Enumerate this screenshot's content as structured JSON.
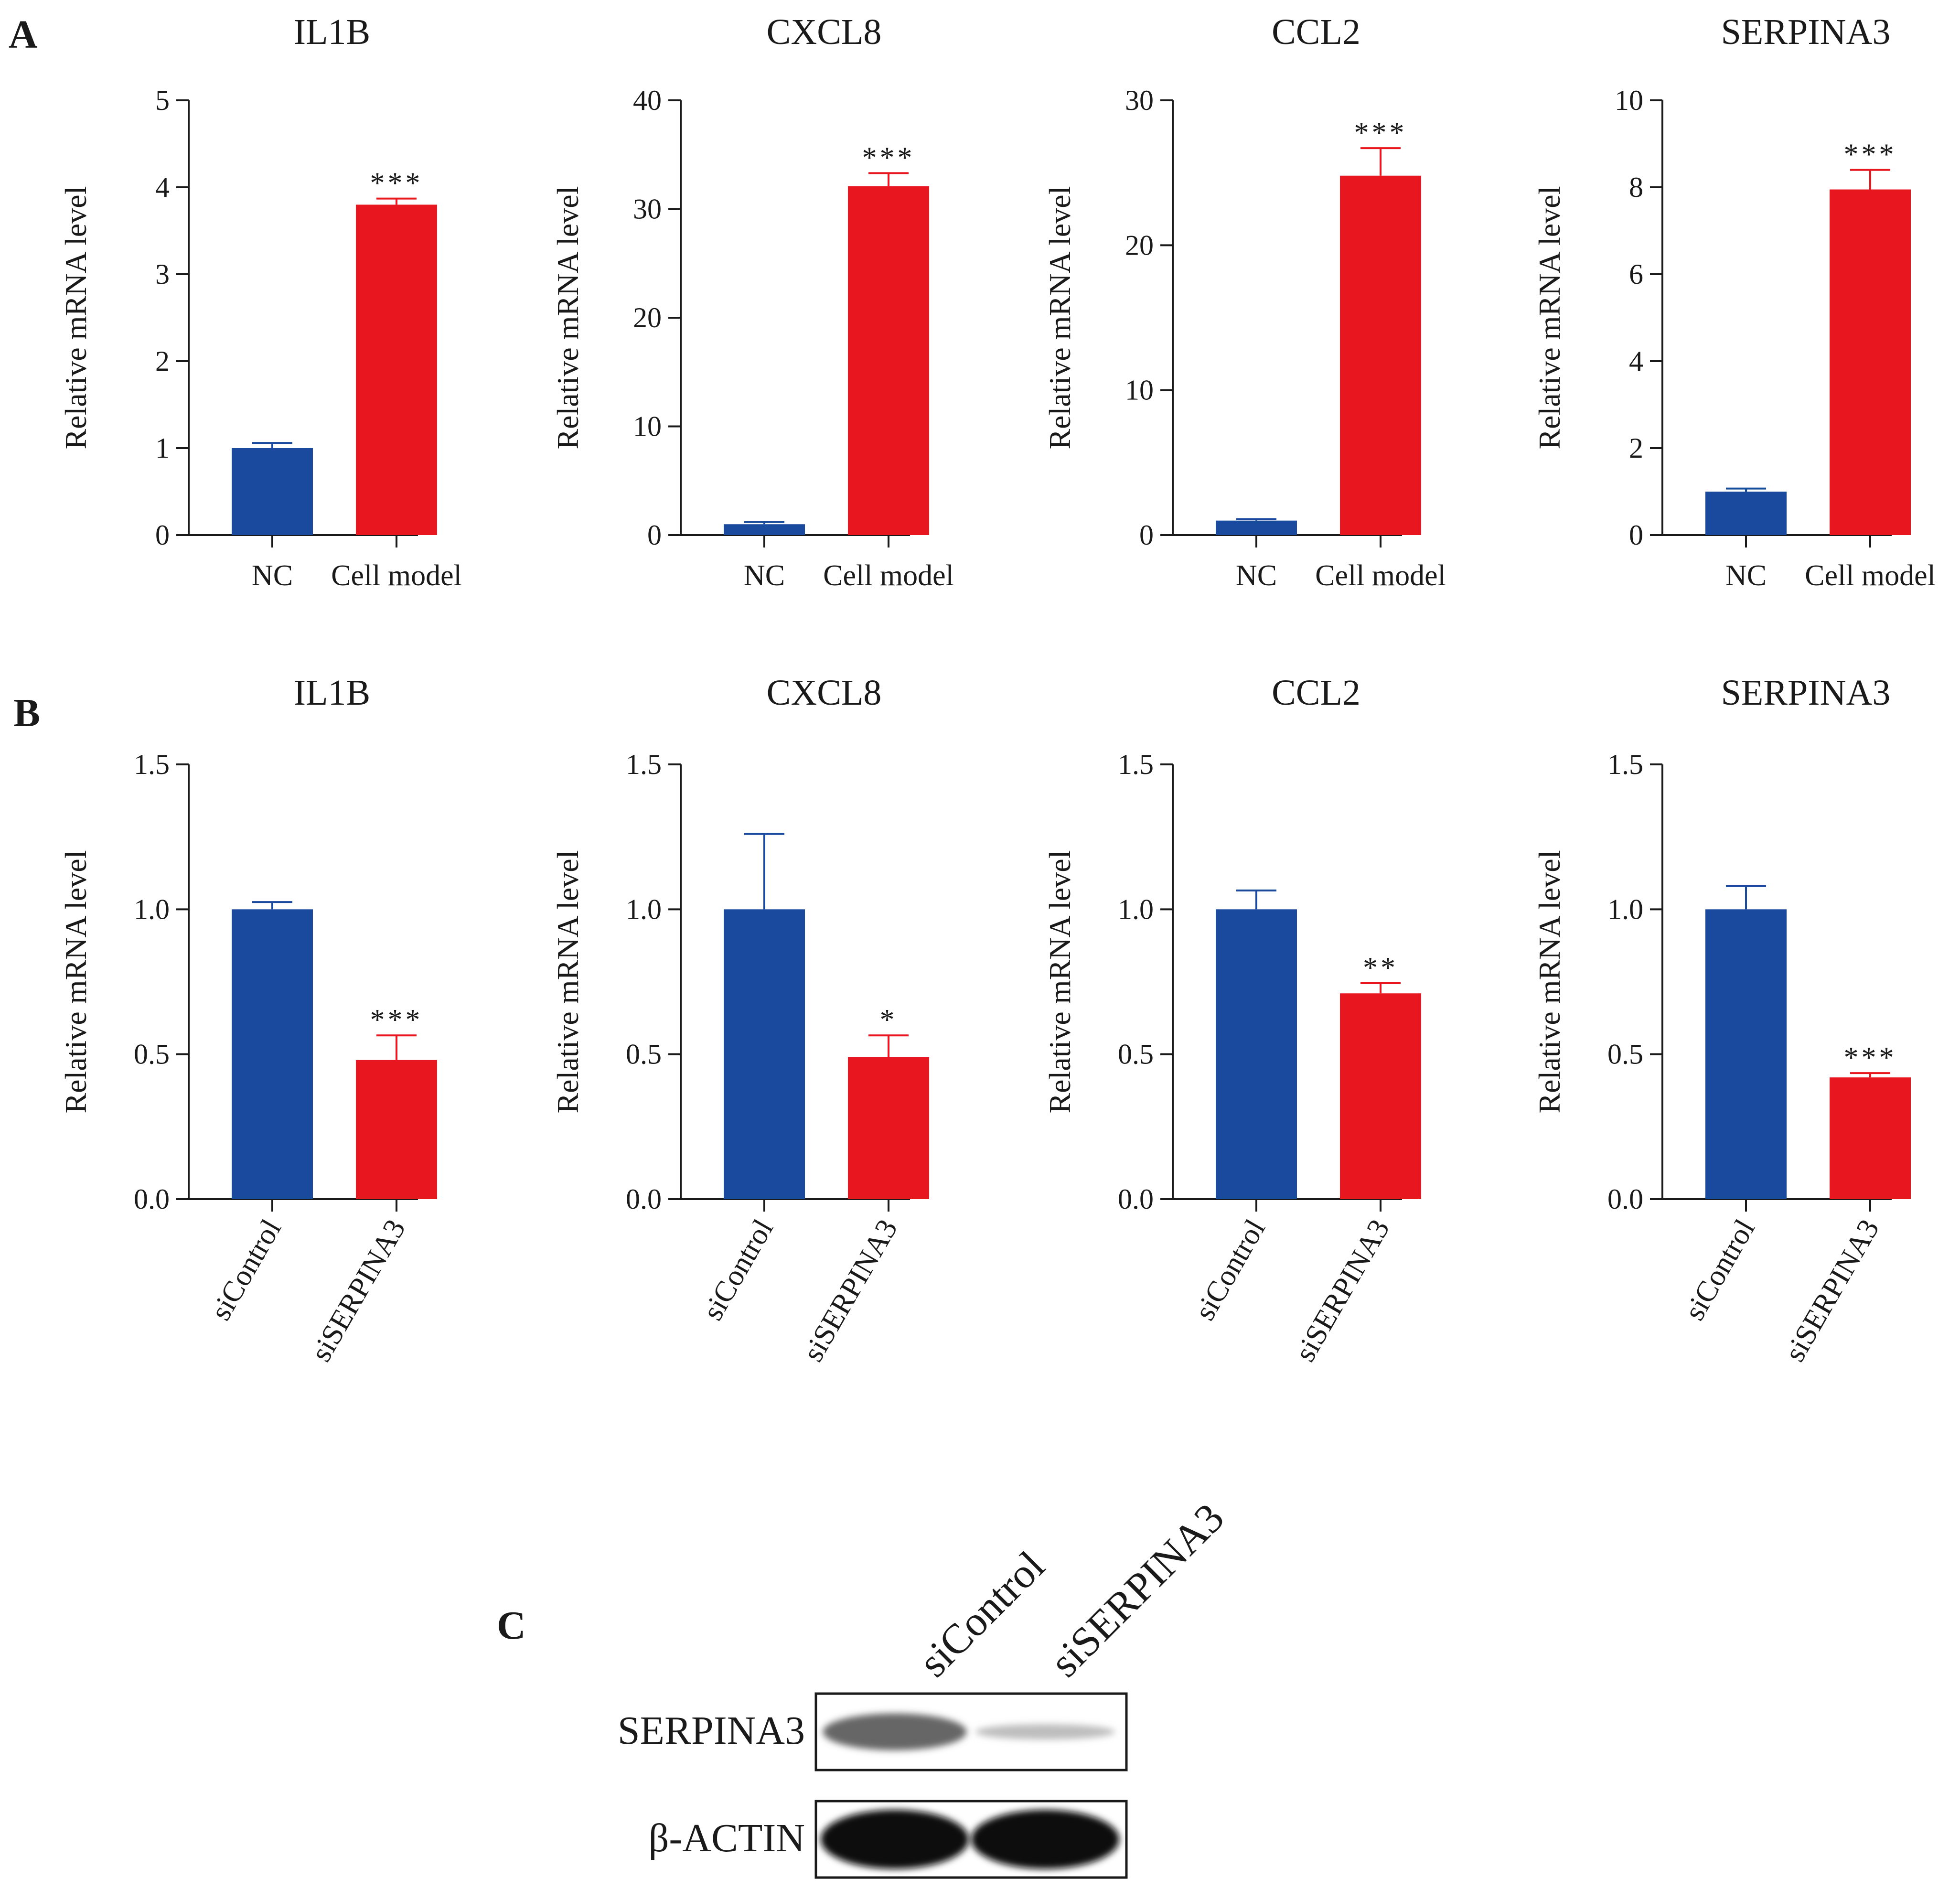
{
  "panels": {
    "a": "A",
    "b": "B",
    "c": "C"
  },
  "colors": {
    "control": "#1a4a9e",
    "treatment": "#e8171f",
    "axis": "#1a1a1a"
  },
  "chart_data": [
    {
      "panel": "A",
      "type": "bar",
      "title": "IL1B",
      "ylabel": "Relative mRNA level",
      "ylim": [
        0,
        5
      ],
      "yticks": [
        "0",
        "1",
        "2",
        "3",
        "4",
        "5"
      ],
      "categories": [
        "NC",
        "Cell model"
      ],
      "values": [
        1.0,
        3.8
      ],
      "errors": [
        0.06,
        0.07
      ],
      "significance": [
        "",
        "***"
      ]
    },
    {
      "panel": "A",
      "type": "bar",
      "title": "CXCL8",
      "ylabel": "Relative mRNA level",
      "ylim": [
        0,
        40
      ],
      "yticks": [
        "0",
        "10",
        "20",
        "30",
        "40"
      ],
      "categories": [
        "NC",
        "Cell model"
      ],
      "values": [
        1.0,
        32.1
      ],
      "errors": [
        0.2,
        1.2
      ],
      "significance": [
        "",
        "***"
      ]
    },
    {
      "panel": "A",
      "type": "bar",
      "title": "CCL2",
      "ylabel": "Relative mRNA level",
      "ylim": [
        0,
        30
      ],
      "yticks": [
        "0",
        "10",
        "20",
        "30"
      ],
      "categories": [
        "NC",
        "Cell model"
      ],
      "values": [
        1.0,
        24.8
      ],
      "errors": [
        0.1,
        1.9
      ],
      "significance": [
        "",
        "***"
      ]
    },
    {
      "panel": "A",
      "type": "bar",
      "title": "SERPINA3",
      "ylabel": "Relative mRNA level",
      "ylim": [
        0,
        10
      ],
      "yticks": [
        "0",
        "2",
        "4",
        "6",
        "8",
        "10"
      ],
      "categories": [
        "NC",
        "Cell model"
      ],
      "values": [
        1.0,
        7.95
      ],
      "errors": [
        0.07,
        0.45
      ],
      "significance": [
        "",
        "***"
      ]
    },
    {
      "panel": "B",
      "type": "bar",
      "title": "IL1B",
      "ylabel": "Relative mRNA level",
      "ylim": [
        0,
        1.5
      ],
      "yticks": [
        "0.0",
        "0.5",
        "1.0",
        "1.5"
      ],
      "categories": [
        "siControl",
        "siSERPINA3"
      ],
      "values": [
        1.0,
        0.48
      ],
      "errors": [
        0.025,
        0.085
      ],
      "significance": [
        "",
        "***"
      ]
    },
    {
      "panel": "B",
      "type": "bar",
      "title": "CXCL8",
      "ylabel": "Relative mRNA level",
      "ylim": [
        0,
        1.5
      ],
      "yticks": [
        "0.0",
        "0.5",
        "1.0",
        "1.5"
      ],
      "categories": [
        "siControl",
        "siSERPINA3"
      ],
      "values": [
        1.0,
        0.49
      ],
      "errors": [
        0.26,
        0.075
      ],
      "significance": [
        "",
        "*"
      ]
    },
    {
      "panel": "B",
      "type": "bar",
      "title": "CCL2",
      "ylabel": "Relative mRNA level",
      "ylim": [
        0,
        1.5
      ],
      "yticks": [
        "0.0",
        "0.5",
        "1.0",
        "1.5"
      ],
      "categories": [
        "siControl",
        "siSERPINA3"
      ],
      "values": [
        1.0,
        0.71
      ],
      "errors": [
        0.065,
        0.035
      ],
      "significance": [
        "",
        "**"
      ]
    },
    {
      "panel": "B",
      "type": "bar",
      "title": "SERPINA3",
      "ylabel": "Relative mRNA level",
      "ylim": [
        0,
        1.5
      ],
      "yticks": [
        "0.0",
        "0.5",
        "1.0",
        "1.5"
      ],
      "categories": [
        "siControl",
        "siSERPINA3"
      ],
      "values": [
        1.0,
        0.42
      ],
      "errors": [
        0.08,
        0.015
      ],
      "significance": [
        "",
        "***"
      ]
    }
  ],
  "western_blot": {
    "lanes": [
      "siControl",
      "siSERPINA3"
    ],
    "rows": [
      {
        "label": "SERPINA3",
        "intensities": [
          0.55,
          0.12
        ]
      },
      {
        "label": "β-ACTIN",
        "intensities": [
          1.0,
          1.0
        ]
      }
    ]
  }
}
